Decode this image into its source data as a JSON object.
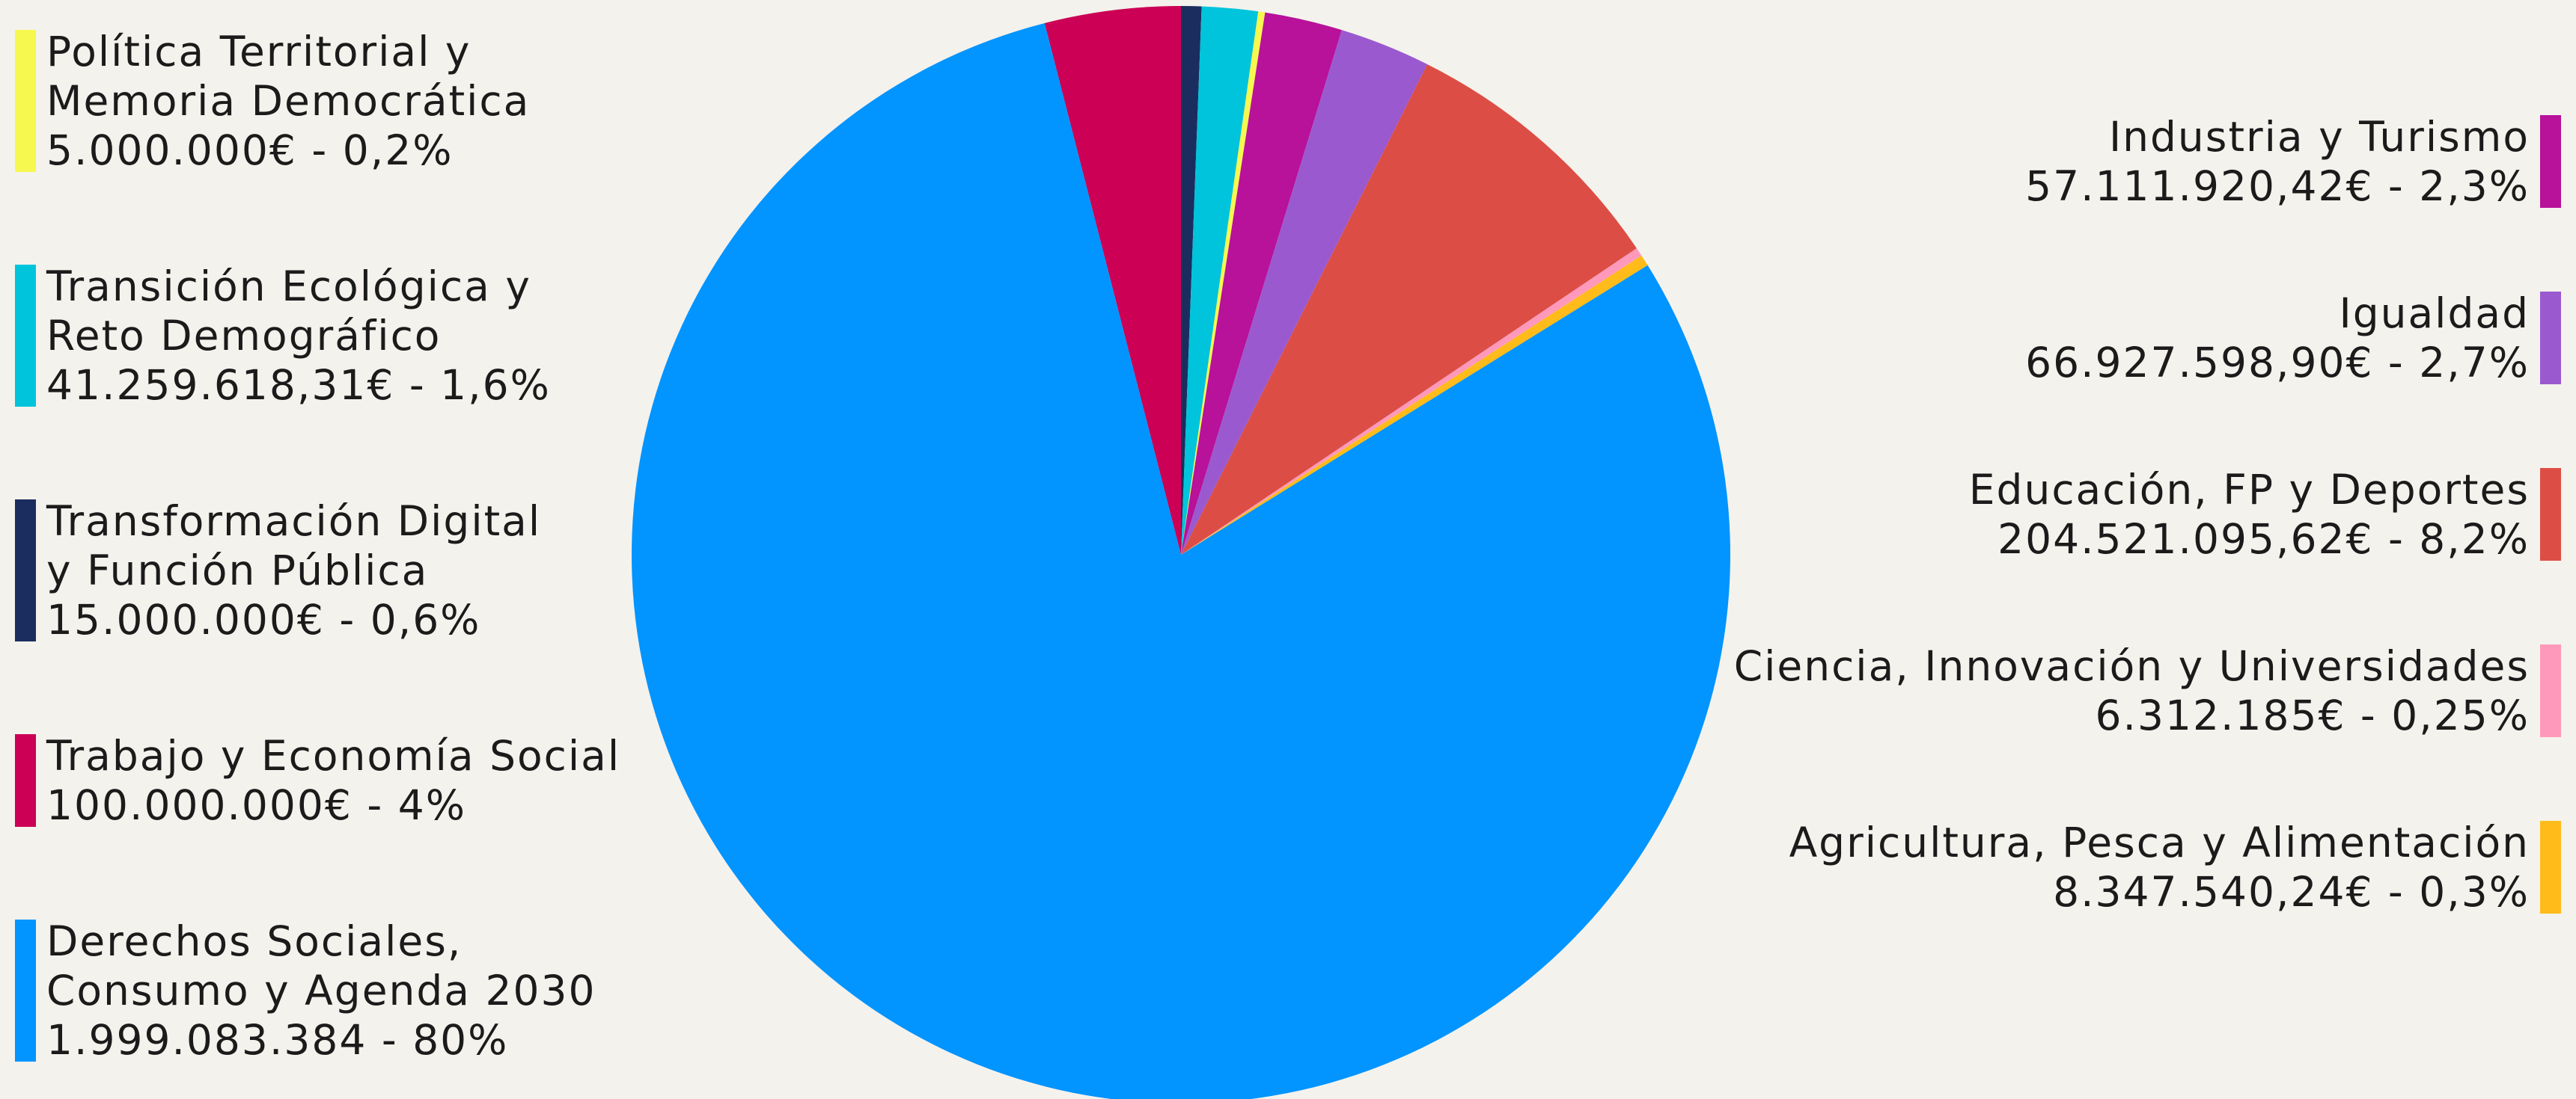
{
  "chart_data": {
    "type": "pie",
    "slices": [
      {
        "label": "Trabajo y Economía Social",
        "value": 100000000,
        "display": "100.000.000€ - 4%",
        "color": "#cc0055"
      },
      {
        "label": "Transformación Digital y Función Pública",
        "value": 15000000,
        "display": "15.000.000€ - 0,6%",
        "color": "#1b2d5e"
      },
      {
        "label": "Transición Ecológica y Reto Demográfico",
        "value": 41259618.31,
        "display": "41.259.618,31€ - 1,6%",
        "color": "#00c4dc"
      },
      {
        "label": "Política Territorial y Memoria Democrática",
        "value": 5000000,
        "display": "5.000.000€ - 0,2%",
        "color": "#f6f84f"
      },
      {
        "label": "Industria y Turismo",
        "value": 57111920.42,
        "display": "57.111.920,42€ - 2,3%",
        "color": "#b8119a"
      },
      {
        "label": "Igualdad",
        "value": 66927598.9,
        "display": "66.927.598,90€ - 2,7%",
        "color": "#9b59cf"
      },
      {
        "label": "Educación, FP y Deportes",
        "value": 204521095.62,
        "display": "204.521.095,62€ - 8,2%",
        "color": "#dc4e45"
      },
      {
        "label": "Ciencia, Innovación y Universidades",
        "value": 6312185,
        "display": "6.312.185€ - 0,25%",
        "color": "#ff99bb"
      },
      {
        "label": "Agricultura, Pesca y Alimentación",
        "value": 8347540.24,
        "display": "8.347.540,24€ - 0,3%",
        "color": "#ffbb1a"
      },
      {
        "label": "Derechos Sociales, Consumo y Agenda 2030",
        "value": 1999083384,
        "display": "1.999.083.384 - 80%",
        "color": "#0294ff"
      }
    ]
  },
  "legend": {
    "left": [
      {
        "lines": [
          "Política Territorial y",
          "Memoria Democrática",
          "5.000.000€ - 0,2%"
        ],
        "color": "#f6f84f"
      },
      {
        "lines": [
          "Transición Ecológica y",
          "Reto Demográfico",
          "41.259.618,31€ - 1,6%"
        ],
        "color": "#00c4dc"
      },
      {
        "lines": [
          "Transformación Digital",
          "y Función Pública",
          "15.000.000€ - 0,6%"
        ],
        "color": "#1b2d5e"
      },
      {
        "lines": [
          "Trabajo y Economía Social",
          "100.000.000€ - 4%"
        ],
        "color": "#cc0055"
      },
      {
        "lines": [
          "Derechos Sociales,",
          "Consumo y Agenda 2030",
          "1.999.083.384 - 80%"
        ],
        "color": "#0294ff"
      }
    ],
    "right": [
      {
        "lines": [
          "Industria y Turismo",
          "57.111.920,42€ - 2,3%"
        ],
        "color": "#b8119a"
      },
      {
        "lines": [
          "Igualdad",
          "66.927.598,90€ - 2,7%"
        ],
        "color": "#9b59cf"
      },
      {
        "lines": [
          "Educación, FP y Deportes",
          "204.521.095,62€ - 8,2%"
        ],
        "color": "#dc4e45"
      },
      {
        "lines": [
          "Ciencia, Innovación y Universidades",
          "6.312.185€ - 0,25%"
        ],
        "color": "#ff99bb"
      },
      {
        "lines": [
          "Agricultura, Pesca y Alimentación",
          "8.347.540,24€ - 0,3%"
        ],
        "color": "#ffbb1a"
      }
    ]
  }
}
